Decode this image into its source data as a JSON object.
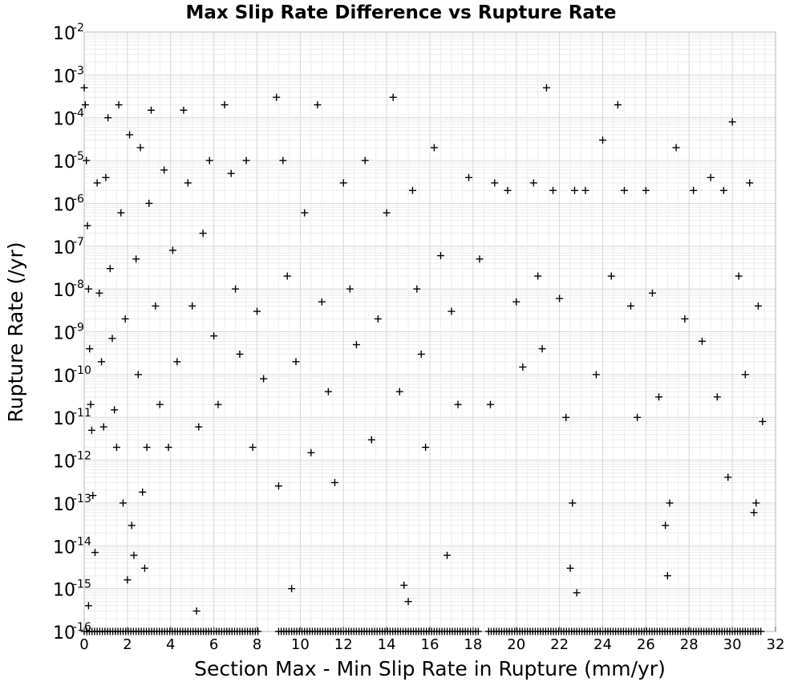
{
  "chart_data": {
    "type": "scatter",
    "title": "Max Slip Rate Difference vs Rupture Rate",
    "xlabel": "Section Max - Min Slip Rate in Rupture (mm/yr)",
    "ylabel": "Rupture Rate (/yr)",
    "xlim": [
      0,
      32
    ],
    "ylim": [
      1e-16,
      0.01
    ],
    "yscale": "log",
    "grid": true,
    "legend": "none",
    "marker": "plus",
    "marker_color": "#000000",
    "x_ticks": [
      "0",
      "2",
      "4",
      "6",
      "8",
      "10",
      "12",
      "14",
      "16",
      "18",
      "20",
      "22",
      "24",
      "26",
      "28",
      "30",
      "32"
    ],
    "y_ticks": [
      {
        "base": "10",
        "exp": "-16"
      },
      {
        "base": "10",
        "exp": "-15"
      },
      {
        "base": "10",
        "exp": "-14"
      },
      {
        "base": "10",
        "exp": "-13"
      },
      {
        "base": "10",
        "exp": "-12"
      },
      {
        "base": "10",
        "exp": "-11"
      },
      {
        "base": "10",
        "exp": "-10"
      },
      {
        "base": "10",
        "exp": "-9"
      },
      {
        "base": "10",
        "exp": "-8"
      },
      {
        "base": "10",
        "exp": "-7"
      },
      {
        "base": "10",
        "exp": "-6"
      },
      {
        "base": "10",
        "exp": "-5"
      },
      {
        "base": "10",
        "exp": "-4"
      },
      {
        "base": "10",
        "exp": "-3"
      },
      {
        "base": "10",
        "exp": "-2"
      }
    ],
    "points": [
      {
        "x": 0.0,
        "y": 0.0005
      },
      {
        "x": 0.05,
        "y": 0.0002
      },
      {
        "x": 0.1,
        "y": 1e-05
      },
      {
        "x": 0.15,
        "y": 3e-07
      },
      {
        "x": 0.2,
        "y": 1e-08
      },
      {
        "x": 0.25,
        "y": 4e-10
      },
      {
        "x": 0.3,
        "y": 2e-11
      },
      {
        "x": 0.35,
        "y": 5e-12
      },
      {
        "x": 0.4,
        "y": 1.5e-13
      },
      {
        "x": 0.5,
        "y": 7e-15
      },
      {
        "x": 0.2,
        "y": 4e-16
      },
      {
        "x": 0.6,
        "y": 3e-06
      },
      {
        "x": 0.7,
        "y": 8e-09
      },
      {
        "x": 0.8,
        "y": 2e-10
      },
      {
        "x": 0.9,
        "y": 6e-12
      },
      {
        "x": 1.0,
        "y": 4e-06
      },
      {
        "x": 1.1,
        "y": 0.0001
      },
      {
        "x": 1.2,
        "y": 3e-08
      },
      {
        "x": 1.3,
        "y": 7e-10
      },
      {
        "x": 1.4,
        "y": 1.5e-11
      },
      {
        "x": 1.5,
        "y": 2e-12
      },
      {
        "x": 1.6,
        "y": 0.0002
      },
      {
        "x": 1.7,
        "y": 6e-07
      },
      {
        "x": 1.8,
        "y": 1e-13
      },
      {
        "x": 1.9,
        "y": 2e-09
      },
      {
        "x": 2.0,
        "y": 1.6e-15
      },
      {
        "x": 2.1,
        "y": 4e-05
      },
      {
        "x": 2.2,
        "y": 3e-14
      },
      {
        "x": 2.3,
        "y": 6e-15
      },
      {
        "x": 2.4,
        "y": 5e-08
      },
      {
        "x": 2.5,
        "y": 1e-10
      },
      {
        "x": 2.6,
        "y": 2e-05
      },
      {
        "x": 2.7,
        "y": 1.8e-13
      },
      {
        "x": 2.8,
        "y": 3e-15
      },
      {
        "x": 2.9,
        "y": 2e-12
      },
      {
        "x": 3.0,
        "y": 1e-06
      },
      {
        "x": 3.1,
        "y": 0.00015
      },
      {
        "x": 3.3,
        "y": 4e-09
      },
      {
        "x": 3.5,
        "y": 2e-11
      },
      {
        "x": 3.7,
        "y": 6e-06
      },
      {
        "x": 3.9,
        "y": 2e-12
      },
      {
        "x": 4.1,
        "y": 8e-08
      },
      {
        "x": 4.3,
        "y": 2e-10
      },
      {
        "x": 4.6,
        "y": 0.00015
      },
      {
        "x": 4.8,
        "y": 3e-06
      },
      {
        "x": 5.0,
        "y": 4e-09
      },
      {
        "x": 5.2,
        "y": 3e-16
      },
      {
        "x": 5.3,
        "y": 6e-12
      },
      {
        "x": 5.5,
        "y": 2e-07
      },
      {
        "x": 5.8,
        "y": 1e-05
      },
      {
        "x": 6.0,
        "y": 8e-10
      },
      {
        "x": 6.2,
        "y": 2e-11
      },
      {
        "x": 6.5,
        "y": 0.0002
      },
      {
        "x": 6.8,
        "y": 5e-06
      },
      {
        "x": 7.0,
        "y": 1e-08
      },
      {
        "x": 7.2,
        "y": 3e-10
      },
      {
        "x": 7.5,
        "y": 1e-05
      },
      {
        "x": 7.8,
        "y": 2e-12
      },
      {
        "x": 8.0,
        "y": 3e-09
      },
      {
        "x": 8.3,
        "y": 8e-11
      },
      {
        "x": 8.9,
        "y": 0.0003
      },
      {
        "x": 9.0,
        "y": 2.5e-13
      },
      {
        "x": 9.2,
        "y": 1e-05
      },
      {
        "x": 9.4,
        "y": 2e-08
      },
      {
        "x": 9.6,
        "y": 1e-15
      },
      {
        "x": 9.8,
        "y": 2e-10
      },
      {
        "x": 10.2,
        "y": 6e-07
      },
      {
        "x": 10.5,
        "y": 1.5e-12
      },
      {
        "x": 10.8,
        "y": 0.0002
      },
      {
        "x": 11.0,
        "y": 5e-09
      },
      {
        "x": 11.3,
        "y": 4e-11
      },
      {
        "x": 11.6,
        "y": 3e-13
      },
      {
        "x": 12.0,
        "y": 3e-06
      },
      {
        "x": 12.3,
        "y": 1e-08
      },
      {
        "x": 12.6,
        "y": 5e-10
      },
      {
        "x": 13.0,
        "y": 1e-05
      },
      {
        "x": 13.3,
        "y": 3e-12
      },
      {
        "x": 13.6,
        "y": 2e-09
      },
      {
        "x": 14.0,
        "y": 6e-07
      },
      {
        "x": 14.3,
        "y": 0.0003
      },
      {
        "x": 14.6,
        "y": 4e-11
      },
      {
        "x": 14.8,
        "y": 1.2e-15
      },
      {
        "x": 15.0,
        "y": 5e-16
      },
      {
        "x": 15.2,
        "y": 2e-06
      },
      {
        "x": 15.4,
        "y": 1e-08
      },
      {
        "x": 15.6,
        "y": 3e-10
      },
      {
        "x": 15.8,
        "y": 2e-12
      },
      {
        "x": 16.2,
        "y": 2e-05
      },
      {
        "x": 16.5,
        "y": 6e-08
      },
      {
        "x": 16.8,
        "y": 6e-15
      },
      {
        "x": 17.0,
        "y": 3e-09
      },
      {
        "x": 17.3,
        "y": 2e-11
      },
      {
        "x": 17.8,
        "y": 4e-06
      },
      {
        "x": 18.3,
        "y": 5e-08
      },
      {
        "x": 18.8,
        "y": 2e-11
      },
      {
        "x": 19.0,
        "y": 3e-06
      },
      {
        "x": 19.6,
        "y": 2e-06
      },
      {
        "x": 20.0,
        "y": 5e-09
      },
      {
        "x": 20.3,
        "y": 1.5e-10
      },
      {
        "x": 20.8,
        "y": 3e-06
      },
      {
        "x": 21.0,
        "y": 2e-08
      },
      {
        "x": 21.2,
        "y": 4e-10
      },
      {
        "x": 21.4,
        "y": 0.0005
      },
      {
        "x": 21.7,
        "y": 2e-06
      },
      {
        "x": 22.0,
        "y": 6e-09
      },
      {
        "x": 22.3,
        "y": 1e-11
      },
      {
        "x": 22.5,
        "y": 3e-15
      },
      {
        "x": 22.6,
        "y": 1e-13
      },
      {
        "x": 22.7,
        "y": 2e-06
      },
      {
        "x": 22.8,
        "y": 8e-16
      },
      {
        "x": 23.2,
        "y": 2e-06
      },
      {
        "x": 23.7,
        "y": 1e-10
      },
      {
        "x": 24.0,
        "y": 3e-05
      },
      {
        "x": 24.4,
        "y": 2e-08
      },
      {
        "x": 24.7,
        "y": 0.0002
      },
      {
        "x": 25.0,
        "y": 2e-06
      },
      {
        "x": 25.3,
        "y": 4e-09
      },
      {
        "x": 25.6,
        "y": 1e-11
      },
      {
        "x": 26.0,
        "y": 2e-06
      },
      {
        "x": 26.3,
        "y": 8e-09
      },
      {
        "x": 26.6,
        "y": 3e-11
      },
      {
        "x": 26.9,
        "y": 3e-14
      },
      {
        "x": 27.0,
        "y": 2e-15
      },
      {
        "x": 27.1,
        "y": 1e-13
      },
      {
        "x": 27.4,
        "y": 2e-05
      },
      {
        "x": 27.8,
        "y": 2e-09
      },
      {
        "x": 28.2,
        "y": 2e-06
      },
      {
        "x": 28.6,
        "y": 6e-10
      },
      {
        "x": 29.0,
        "y": 4e-06
      },
      {
        "x": 29.3,
        "y": 3e-11
      },
      {
        "x": 29.6,
        "y": 2e-06
      },
      {
        "x": 29.8,
        "y": 4e-13
      },
      {
        "x": 30.0,
        "y": 8e-05
      },
      {
        "x": 30.3,
        "y": 2e-08
      },
      {
        "x": 30.6,
        "y": 1e-10
      },
      {
        "x": 30.8,
        "y": 3e-06
      },
      {
        "x": 31.0,
        "y": 6e-14
      },
      {
        "x": 31.1,
        "y": 1e-13
      },
      {
        "x": 31.2,
        "y": 4e-09
      },
      {
        "x": 31.4,
        "y": 8e-12
      }
    ],
    "floor_row_y": 1e-16,
    "floor_row_note_values": [
      0.0,
      32.0
    ]
  }
}
